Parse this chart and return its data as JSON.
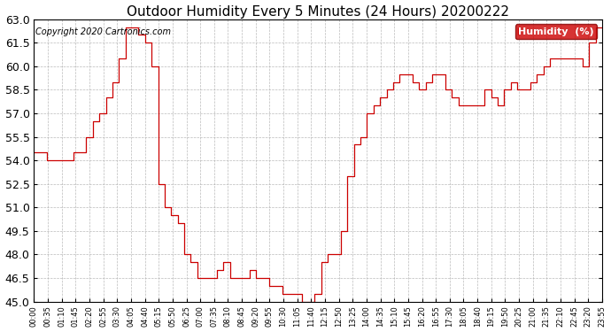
{
  "title": "Outdoor Humidity Every 5 Minutes (24 Hours) 20200222",
  "copyright": "Copyright 2020 Cartronics.com",
  "legend_label": "Humidity  (%)",
  "legend_bg": "#cc0000",
  "legend_text_color": "#ffffff",
  "line_color": "#cc0000",
  "background_color": "#ffffff",
  "grid_color": "#aaaaaa",
  "ylim": [
    45.0,
    63.0
  ],
  "ytick_step": 1.5,
  "x_labels": [
    "00:00",
    "00:35",
    "01:10",
    "01:45",
    "02:20",
    "02:55",
    "03:30",
    "04:05",
    "04:40",
    "05:15",
    "05:50",
    "06:25",
    "07:00",
    "07:35",
    "08:10",
    "08:45",
    "09:20",
    "09:55",
    "10:30",
    "11:05",
    "11:40",
    "12:15",
    "12:50",
    "13:25",
    "14:00",
    "14:35",
    "15:10",
    "15:45",
    "16:20",
    "16:55",
    "17:30",
    "18:05",
    "18:40",
    "19:15",
    "19:50",
    "20:25",
    "21:00",
    "21:35",
    "22:10",
    "22:45",
    "23:20",
    "23:55"
  ],
  "humidity_values": [
    54.5,
    54.5,
    54.0,
    54.0,
    54.0,
    54.0,
    54.5,
    54.5,
    55.5,
    56.5,
    57.0,
    58.0,
    59.0,
    60.5,
    62.5,
    62.5,
    62.0,
    61.5,
    60.0,
    52.5,
    51.0,
    50.5,
    50.0,
    48.0,
    47.5,
    46.5,
    46.5,
    46.5,
    47.0,
    47.5,
    46.5,
    46.5,
    46.5,
    47.0,
    46.5,
    46.5,
    46.0,
    46.0,
    45.5,
    45.5,
    45.5,
    45.0,
    45.0,
    45.5,
    47.5,
    48.0,
    48.0,
    49.5,
    53.0,
    55.0,
    55.5,
    57.0,
    57.5,
    58.0,
    58.5,
    59.0,
    59.5,
    59.5,
    59.0,
    58.5,
    59.0,
    59.5,
    59.5,
    58.5,
    58.0,
    57.5,
    57.5,
    57.5,
    57.5,
    58.5,
    58.0,
    57.5,
    58.5,
    59.0,
    58.5,
    58.5,
    59.0,
    59.5,
    60.0,
    60.5,
    60.5,
    60.5,
    60.5,
    60.5,
    60.0,
    61.5,
    62.5,
    62.5
  ],
  "title_fontsize": 11,
  "copyright_fontsize": 7,
  "ytick_fontsize": 9,
  "xtick_fontsize": 6
}
